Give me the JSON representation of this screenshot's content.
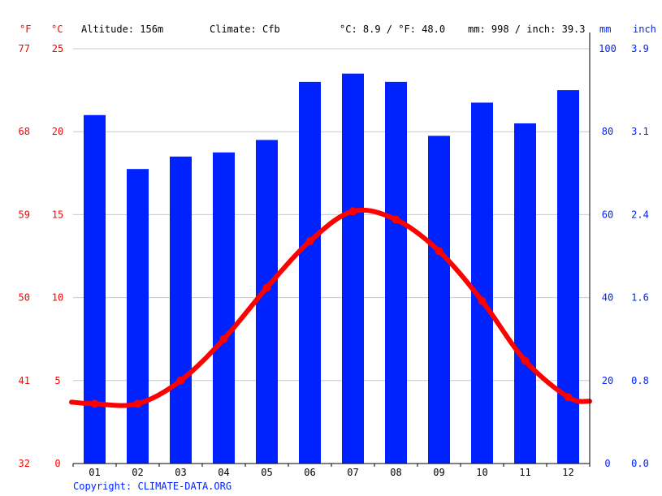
{
  "header": {
    "unit_f": "°F",
    "unit_c": "°C",
    "altitude": "Altitude: 156m",
    "climate": "Climate: Cfb",
    "temp_avg": "°C: 8.9 / °F: 48.0",
    "precip_avg": "mm: 998 / inch: 39.3",
    "unit_mm": "mm",
    "unit_inch": "inch"
  },
  "axes": {
    "fahrenheit_ticks": [
      "32",
      "41",
      "50",
      "59",
      "68",
      "77"
    ],
    "celsius_ticks": [
      "0",
      "5",
      "10",
      "15",
      "20",
      "25"
    ],
    "mm_ticks": [
      "0",
      "20",
      "40",
      "60",
      "80",
      "100"
    ],
    "inch_ticks": [
      "0.0",
      "0.8",
      "1.6",
      "2.4",
      "3.1",
      "3.9"
    ]
  },
  "copyright": "Copyright: CLIMATE-DATA.ORG",
  "colors": {
    "temperature": "#ff0000",
    "precipitation": "#0022ff",
    "grid": "#c8c8c8"
  },
  "chart_data": {
    "type": "bar",
    "categories": [
      "01",
      "02",
      "03",
      "04",
      "05",
      "06",
      "07",
      "08",
      "09",
      "10",
      "11",
      "12"
    ],
    "series": [
      {
        "type": "bar",
        "axis": "mm",
        "values": [
          84,
          71,
          74,
          75,
          78,
          92,
          94,
          92,
          79,
          87,
          82,
          90
        ]
      },
      {
        "type": "line",
        "axis": "°C",
        "values": [
          3.6,
          3.6,
          5.0,
          7.5,
          10.6,
          13.4,
          15.2,
          14.7,
          12.8,
          9.8,
          6.2,
          4.0
        ]
      }
    ],
    "y_left_celsius": [
      0,
      25
    ],
    "y_right_mm": [
      0,
      100
    ],
    "grid": true
  }
}
